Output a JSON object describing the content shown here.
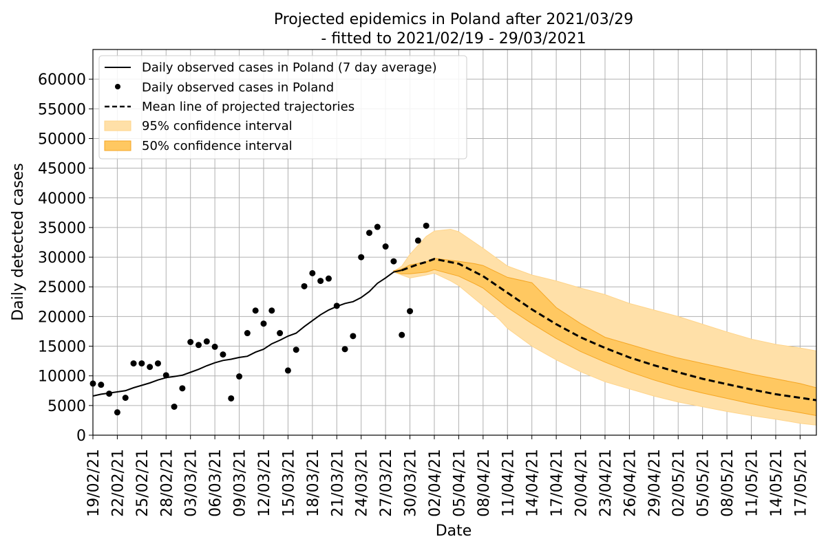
{
  "chart_data": {
    "type": "line",
    "title": "Projected epidemics in Poland after 2021/03/29",
    "subtitle": "- fitted to 2021/02/19 - 29/03/2021",
    "xlabel": "Date",
    "ylabel": "Daily detected cases",
    "ylim": [
      0,
      65000
    ],
    "xlim": [
      "19/02/21",
      "19/05/21"
    ],
    "grid": true,
    "legend_placement": "top-left",
    "y_ticks": [
      0,
      5000,
      10000,
      15000,
      20000,
      25000,
      30000,
      35000,
      40000,
      45000,
      50000,
      55000,
      60000
    ],
    "x_ticks": [
      "19/02/21",
      "22/02/21",
      "25/02/21",
      "28/02/21",
      "03/03/21",
      "06/03/21",
      "09/03/21",
      "12/03/21",
      "15/03/21",
      "18/03/21",
      "21/03/21",
      "24/03/21",
      "27/03/21",
      "30/03/21",
      "02/04/21",
      "05/04/21",
      "08/04/21",
      "11/04/21",
      "14/04/21",
      "17/04/21",
      "20/04/21",
      "23/04/21",
      "26/04/21",
      "29/04/21",
      "02/05/21",
      "05/05/21",
      "08/05/21",
      "11/05/21",
      "14/05/21",
      "17/05/21"
    ],
    "legend": [
      {
        "label": "Daily observed cases in Poland (7 day average)",
        "style": "line"
      },
      {
        "label": "Daily observed cases in Poland",
        "style": "dot"
      },
      {
        "label": "Mean line of projected trajectories",
        "style": "dashed"
      },
      {
        "label": "95% confidence interval",
        "style": "band95"
      },
      {
        "label": "50% confidence interval",
        "style": "band50"
      }
    ],
    "colors": {
      "observed": "#000000",
      "band95": "#ffe0a8",
      "band50": "#ffc861",
      "band_edge": "#f5a623",
      "grid": "#b0b0b0"
    },
    "series": [
      {
        "name": "Daily observed cases in Poland (7 day average)",
        "kind": "line",
        "x": [
          "19/02/21",
          "20/02/21",
          "21/02/21",
          "22/02/21",
          "23/02/21",
          "24/02/21",
          "25/02/21",
          "26/02/21",
          "27/02/21",
          "28/02/21",
          "01/03/21",
          "02/03/21",
          "03/03/21",
          "04/03/21",
          "05/03/21",
          "06/03/21",
          "07/03/21",
          "08/03/21",
          "09/03/21",
          "10/03/21",
          "11/03/21",
          "12/03/21",
          "13/03/21",
          "14/03/21",
          "15/03/21",
          "16/03/21",
          "17/03/21",
          "18/03/21",
          "19/03/21",
          "20/03/21",
          "21/03/21",
          "22/03/21",
          "23/03/21",
          "24/03/21",
          "25/03/21",
          "26/03/21",
          "27/03/21",
          "28/03/21",
          "29/03/21"
        ],
        "y": [
          6600,
          6900,
          7100,
          7300,
          7500,
          8000,
          8400,
          8800,
          9300,
          9700,
          9900,
          10100,
          10600,
          11100,
          11700,
          12200,
          12600,
          12800,
          13100,
          13300,
          14000,
          14500,
          15400,
          16000,
          16700,
          17200,
          18300,
          19300,
          20300,
          21100,
          21700,
          22200,
          22500,
          23200,
          24200,
          25600,
          26500,
          27500,
          27800
        ]
      },
      {
        "name": "Daily observed cases in Poland",
        "kind": "scatter",
        "x": [
          "19/02/21",
          "20/02/21",
          "21/02/21",
          "22/02/21",
          "23/02/21",
          "24/02/21",
          "25/02/21",
          "26/02/21",
          "27/02/21",
          "28/02/21",
          "01/03/21",
          "02/03/21",
          "03/03/21",
          "04/03/21",
          "05/03/21",
          "06/03/21",
          "07/03/21",
          "08/03/21",
          "09/03/21",
          "10/03/21",
          "11/03/21",
          "12/03/21",
          "13/03/21",
          "14/03/21",
          "15/03/21",
          "16/03/21",
          "17/03/21",
          "18/03/21",
          "19/03/21",
          "20/03/21",
          "21/03/21",
          "22/03/21",
          "23/03/21",
          "24/03/21",
          "25/03/21",
          "26/03/21",
          "27/03/21",
          "28/03/21",
          "29/03/21",
          "30/03/21",
          "31/03/21",
          "01/04/21"
        ],
        "y": [
          8700,
          8500,
          7000,
          3850,
          6300,
          12100,
          12100,
          11500,
          12100,
          10100,
          4800,
          7900,
          15700,
          15200,
          15800,
          14900,
          13600,
          6200,
          9900,
          17200,
          21000,
          18800,
          21000,
          17200,
          10900,
          14400,
          25100,
          27300,
          26000,
          26400,
          21800,
          14500,
          16700,
          30000,
          34100,
          35100,
          31800,
          29300,
          16900,
          20900,
          32800,
          35300
        ]
      },
      {
        "name": "Mean line of projected trajectories",
        "kind": "dashed-line",
        "x": [
          "29/03/21",
          "30/03/21",
          "31/03/21",
          "01/04/21",
          "02/04/21",
          "05/04/21",
          "08/04/21",
          "11/04/21",
          "14/04/21",
          "17/04/21",
          "20/04/21",
          "23/04/21",
          "26/04/21",
          "29/04/21",
          "02/05/21",
          "05/05/21",
          "08/05/21",
          "11/05/21",
          "14/05/21",
          "17/05/21",
          "19/05/21"
        ],
        "y": [
          27800,
          28300,
          28800,
          29200,
          29700,
          28900,
          26800,
          24000,
          21200,
          18700,
          16500,
          14700,
          13100,
          11800,
          10600,
          9500,
          8600,
          7700,
          6900,
          6300,
          5900
        ]
      },
      {
        "name": "95% confidence interval",
        "kind": "band",
        "x": [
          "28/03/21",
          "29/03/21",
          "30/03/21",
          "01/04/21",
          "02/04/21",
          "04/04/21",
          "05/04/21",
          "08/04/21",
          "10/04/21",
          "11/04/21",
          "14/04/21",
          "17/04/21",
          "20/04/21",
          "23/04/21",
          "26/04/21",
          "29/04/21",
          "02/05/21",
          "05/05/21",
          "08/05/21",
          "11/05/21",
          "14/05/21",
          "17/05/21",
          "19/05/21"
        ],
        "lower": [
          27500,
          27000,
          26500,
          27000,
          27300,
          26000,
          25200,
          21800,
          19500,
          18000,
          15000,
          12700,
          10700,
          9000,
          7800,
          6600,
          5600,
          4800,
          4000,
          3300,
          2700,
          2000,
          1700
        ],
        "upper": [
          27600,
          28500,
          30500,
          33500,
          34400,
          34700,
          34300,
          31500,
          29500,
          28500,
          27000,
          26000,
          24800,
          23700,
          22200,
          21100,
          20000,
          18700,
          17400,
          16200,
          15300,
          14700,
          14200
        ]
      },
      {
        "name": "50% confidence interval",
        "kind": "band",
        "x": [
          "28/03/21",
          "29/03/21",
          "30/03/21",
          "01/04/21",
          "02/04/21",
          "05/04/21",
          "07/04/21",
          "08/04/21",
          "11/04/21",
          "14/04/21",
          "17/04/21",
          "20/04/21",
          "23/04/21",
          "26/04/21",
          "29/04/21",
          "02/05/21",
          "05/05/21",
          "08/05/21",
          "11/05/21",
          "14/05/21",
          "17/05/21",
          "19/05/21"
        ],
        "lower": [
          27600,
          27200,
          27200,
          27500,
          27900,
          26800,
          25500,
          24800,
          21500,
          18800,
          16300,
          14100,
          12300,
          10700,
          9300,
          8100,
          7100,
          6200,
          5300,
          4500,
          3800,
          3300
        ],
        "upper": [
          27700,
          28000,
          28700,
          29200,
          29800,
          29300,
          28900,
          28600,
          26600,
          25700,
          21500,
          18800,
          16500,
          15300,
          14100,
          13000,
          12100,
          11200,
          10300,
          9500,
          8700,
          8000
        ]
      }
    ]
  }
}
